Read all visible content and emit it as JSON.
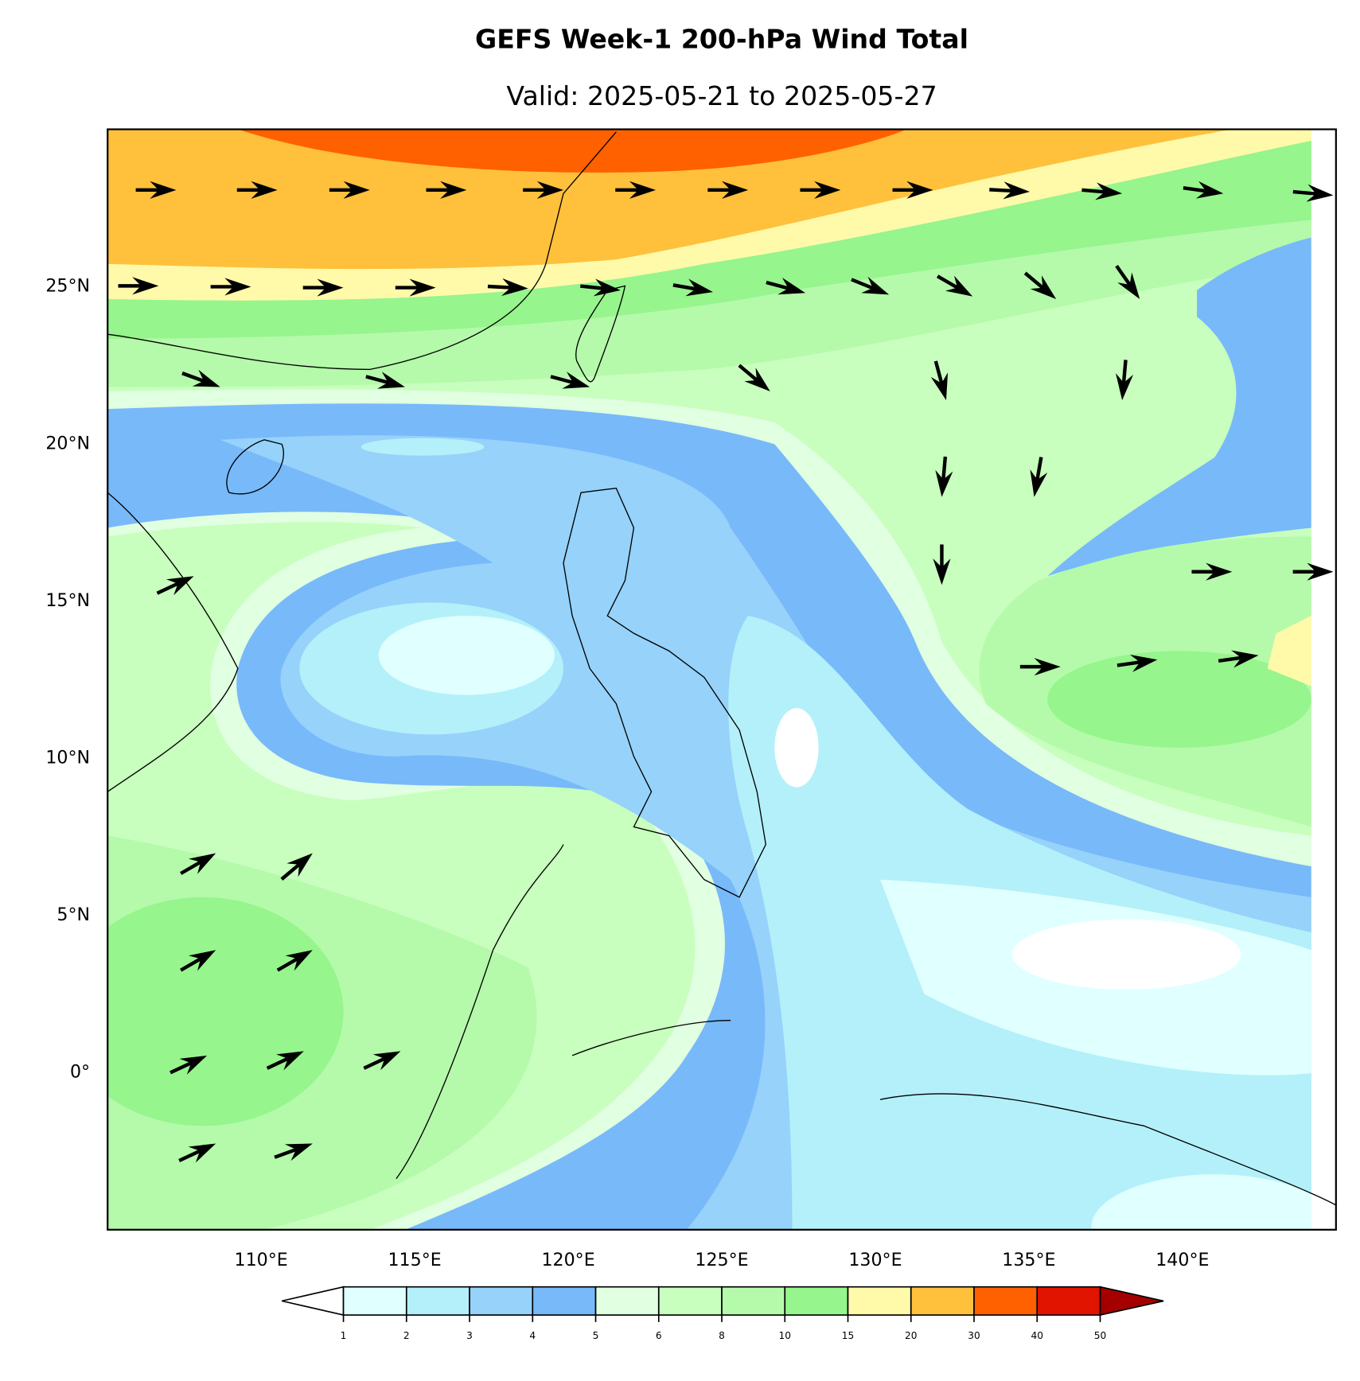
{
  "chart_data": {
    "type": "map",
    "title": "GEFS Week-1 200-hPa Wind Total",
    "subtitle": "Valid: 2025-05-21 to 2025-05-27",
    "xlim": [
      105,
      145
    ],
    "ylim": [
      -5,
      30
    ],
    "xticks": [
      {
        "value": 110,
        "label": "110°E"
      },
      {
        "value": 115,
        "label": "115°E"
      },
      {
        "value": 120,
        "label": "120°E"
      },
      {
        "value": 125,
        "label": "125°E"
      },
      {
        "value": 130,
        "label": "130°E"
      },
      {
        "value": 135,
        "label": "135°E"
      },
      {
        "value": 140,
        "label": "140°E"
      }
    ],
    "yticks": [
      {
        "value": 0,
        "label": "0°"
      },
      {
        "value": 5,
        "label": "5°N"
      },
      {
        "value": 10,
        "label": "10°N"
      },
      {
        "value": 15,
        "label": "15°N"
      },
      {
        "value": 20,
        "label": "20°N"
      },
      {
        "value": 25,
        "label": "25°N"
      }
    ],
    "colorbar": {
      "levels": [
        1,
        2,
        3,
        4,
        5,
        6,
        8,
        10,
        15,
        20,
        30,
        40,
        50
      ],
      "colors": [
        "#e0ffff",
        "#b4f0fa",
        "#96d2fa",
        "#78b9fa",
        "#e1ffe1",
        "#c8ffbe",
        "#b4faaa",
        "#96f58c",
        "#fffaaa",
        "#ffc03c",
        "#ff6000",
        "#e11400"
      ],
      "under": "#ffffff",
      "over": "#a50000"
    }
  }
}
